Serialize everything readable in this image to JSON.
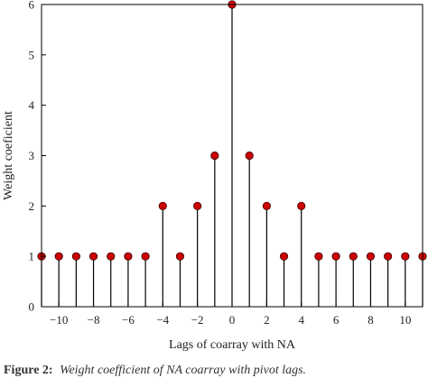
{
  "chart_data": {
    "type": "stem",
    "title": "",
    "xlabel": "Lags of coarray with NA",
    "ylabel": "Weight coeficient",
    "xlim": [
      -11,
      11
    ],
    "ylim": [
      0,
      6
    ],
    "xticks": [
      -10,
      -8,
      -6,
      -4,
      -2,
      0,
      2,
      4,
      6,
      8,
      10
    ],
    "xtick_labels": [
      "−10",
      "−8",
      "−6",
      "−4",
      "−2",
      "0",
      "2",
      "4",
      "6",
      "8",
      "10"
    ],
    "yticks": [
      0,
      1,
      2,
      3,
      4,
      5,
      6
    ],
    "ytick_labels": [
      "0",
      "1",
      "2",
      "3",
      "4",
      "5",
      "6"
    ],
    "x": [
      -11,
      -10,
      -9,
      -8,
      -7,
      -6,
      -5,
      -4,
      -3,
      -2,
      -1,
      0,
      1,
      2,
      3,
      4,
      5,
      6,
      7,
      8,
      9,
      10,
      11
    ],
    "y": [
      1,
      1,
      1,
      1,
      1,
      1,
      1,
      2,
      1,
      2,
      3,
      6,
      3,
      2,
      1,
      2,
      1,
      1,
      1,
      1,
      1,
      1,
      1
    ],
    "marker_color": "#cc0000",
    "stem_color": "#000000",
    "grid": false
  },
  "caption": {
    "label": "Figure 2:",
    "text": "Weight coefficient of NA coarray with pivot lags."
  }
}
